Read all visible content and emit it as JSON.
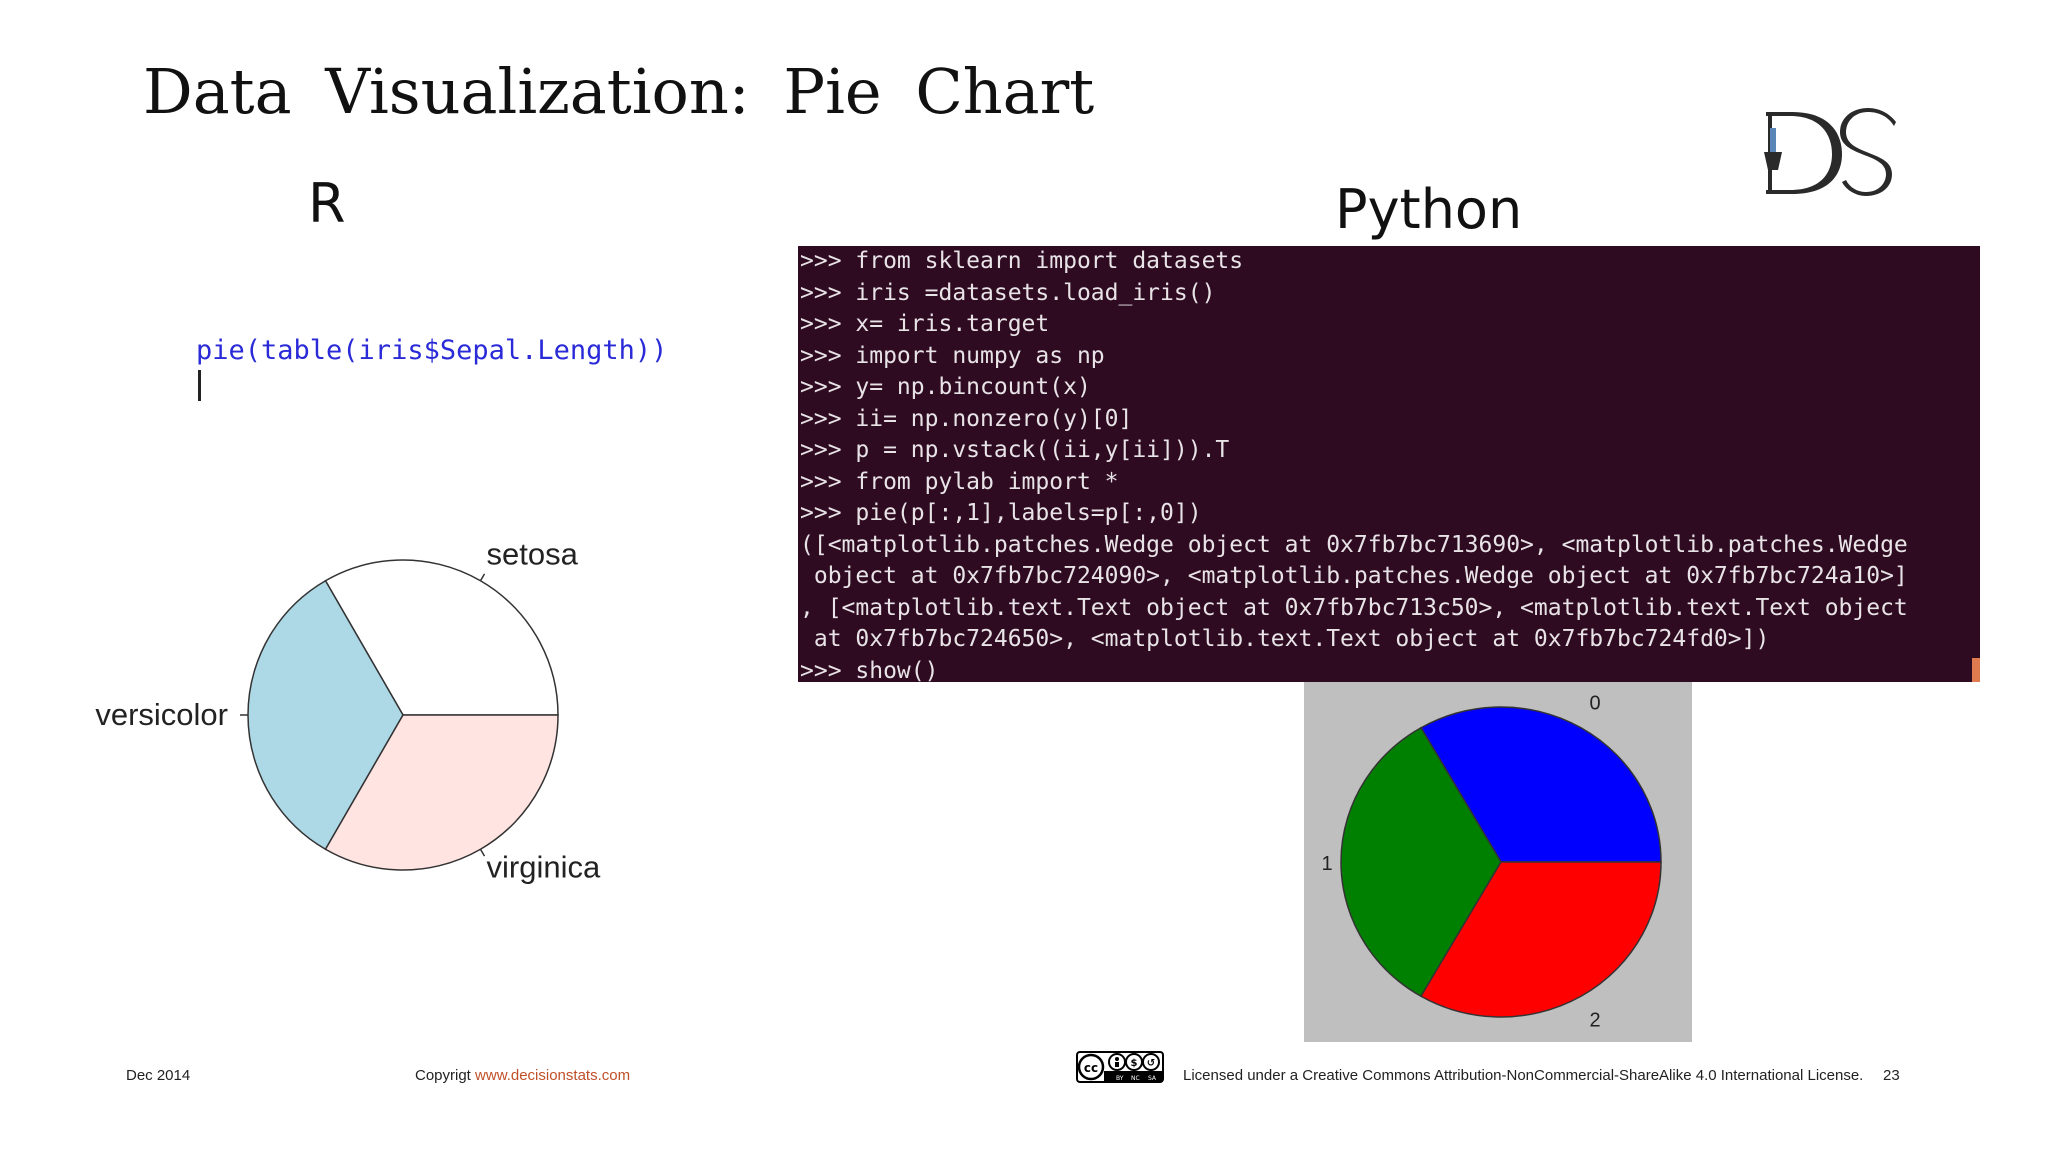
{
  "slide": {
    "title": "Data Visualization: Pie Chart",
    "r_heading": "R",
    "python_heading": "Python",
    "logo_text": "DS"
  },
  "r_panel": {
    "code": "pie(table(iris$Sepal.Length))"
  },
  "terminal": {
    "lines": [
      ">>> from sklearn import datasets",
      ">>> iris =datasets.load_iris()",
      ">>> x= iris.target",
      ">>> import numpy as np",
      ">>> y= np.bincount(x)",
      ">>> ii= np.nonzero(y)[0]",
      ">>> p = np.vstack((ii,y[ii])).T",
      ">>> from pylab import *",
      ">>> pie(p[:,1],labels=p[:,0])",
      "([<matplotlib.patches.Wedge object at 0x7fb7bc713690>, <matplotlib.patches.Wedge",
      " object at 0x7fb7bc724090>, <matplotlib.patches.Wedge object at 0x7fb7bc724a10>]",
      ", [<matplotlib.text.Text object at 0x7fb7bc713c50>, <matplotlib.text.Text object",
      " at 0x7fb7bc724650>, <matplotlib.text.Text object at 0x7fb7bc724fd0>])",
      ">>> show()"
    ]
  },
  "chart_data": [
    {
      "type": "pie",
      "categories": [
        "setosa",
        "versicolor",
        "virginica"
      ],
      "values": [
        50,
        50,
        50
      ],
      "colors": [
        "#ffffff",
        "#add8e6",
        "#ffe4e1"
      ]
    },
    {
      "type": "pie",
      "categories": [
        "0",
        "1",
        "2"
      ],
      "values": [
        50,
        50,
        50
      ],
      "colors": [
        "#0000ff",
        "#008000",
        "#ff0000"
      ],
      "background": "#bfbfbf"
    }
  ],
  "footer": {
    "date": "Dec 2014",
    "copyright_prefix": "Copyrigt ",
    "copyright_link": "www.decisionstats.com",
    "license_badge": "cc BY NC SA",
    "license_text": "Licensed under a Creative Commons Attribution-NonCommercial-ShareAlike 4.0 International License.",
    "page_number": "23"
  }
}
